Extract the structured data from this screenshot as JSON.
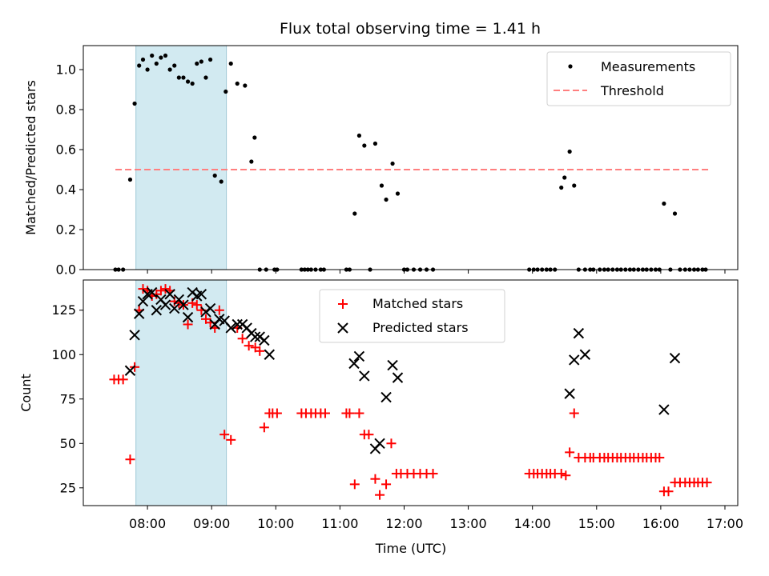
{
  "chart_data": [
    {
      "type": "scatter",
      "title": "Flux total observing time = 1.41 h",
      "xlabel": "",
      "ylabel": "Matched/Predicted stars",
      "xlim": [
        7.0,
        17.2
      ],
      "ylim": [
        0,
        1.12
      ],
      "yticks": [
        0,
        0.2,
        0.4,
        0.6,
        0.8,
        1.0
      ],
      "ytick_labels": [
        "0.0",
        "0.2",
        "0.4",
        "0.6",
        "0.8",
        "1.0"
      ],
      "xticks": [
        8,
        9,
        10,
        11,
        12,
        13,
        14,
        15,
        16,
        17
      ],
      "grid": false,
      "legend_position": "top-right",
      "shaded_interval": {
        "start": 7.82,
        "end": 9.23,
        "color": "#add8e6"
      },
      "series": [
        {
          "name": "Measurements",
          "marker": "dot",
          "color": "#000000",
          "x": [
            7.5,
            7.55,
            7.62,
            7.73,
            7.8,
            7.87,
            7.93,
            8.0,
            8.07,
            8.14,
            8.21,
            8.28,
            8.35,
            8.42,
            8.49,
            8.56,
            8.63,
            8.7,
            8.77,
            8.84,
            8.91,
            8.98,
            9.05,
            9.15,
            9.22,
            9.3,
            9.4,
            9.52,
            9.62,
            9.67,
            9.75,
            9.85,
            9.98,
            10.02,
            10.4,
            10.45,
            10.5,
            10.55,
            10.62,
            10.7,
            10.75,
            11.1,
            11.15,
            11.23,
            11.3,
            11.38,
            11.47,
            11.55,
            11.65,
            11.72,
            11.82,
            11.9,
            12.0,
            12.05,
            12.15,
            12.25,
            12.35,
            12.45,
            13.95,
            14.02,
            14.08,
            14.15,
            14.22,
            14.28,
            14.35,
            14.45,
            14.5,
            14.58,
            14.65,
            14.72,
            14.82,
            14.9,
            14.95,
            15.05,
            15.12,
            15.18,
            15.25,
            15.32,
            15.38,
            15.45,
            15.52,
            15.58,
            15.65,
            15.72,
            15.78,
            15.85,
            15.92,
            15.98,
            16.05,
            16.15,
            16.22,
            16.3,
            16.38,
            16.45,
            16.52,
            16.58,
            16.65,
            16.7
          ],
          "y": [
            0,
            0,
            0,
            0.45,
            0.83,
            1.02,
            1.05,
            1.0,
            1.07,
            1.03,
            1.06,
            1.07,
            1.0,
            1.02,
            0.96,
            0.96,
            0.94,
            0.93,
            1.03,
            1.04,
            0.96,
            1.05,
            0.47,
            0.44,
            0.89,
            1.03,
            0.93,
            0.92,
            0.54,
            0.66,
            0,
            0,
            0,
            0,
            0,
            0,
            0,
            0,
            0,
            0,
            0,
            0,
            0,
            0.28,
            0.67,
            0.62,
            0,
            0.63,
            0.42,
            0.35,
            0.53,
            0.38,
            0,
            0,
            0,
            0,
            0,
            0,
            0,
            0,
            0,
            0,
            0,
            0,
            0,
            0.41,
            0.46,
            0.59,
            0.42,
            0,
            0,
            0,
            0,
            0,
            0,
            0,
            0,
            0,
            0,
            0,
            0,
            0,
            0,
            0,
            0,
            0,
            0,
            0,
            0.33,
            0,
            0.28,
            0,
            0,
            0,
            0,
            0,
            0,
            0
          ],
          "x_plot": [
            7.5,
            7.55,
            7.62,
            7.73,
            7.8,
            7.87,
            7.93,
            8.0,
            8.07,
            8.14,
            8.21,
            8.28,
            8.35,
            8.42,
            8.49,
            8.56,
            8.63,
            8.7,
            8.77,
            8.84,
            8.91,
            8.98,
            9.05,
            9.15,
            9.22,
            9.3,
            9.4,
            9.52,
            9.62,
            9.67,
            9.75,
            9.85,
            9.98,
            10.02,
            10.4,
            10.45,
            10.5,
            10.55,
            10.62,
            10.7,
            10.75,
            11.1,
            11.15,
            11.23,
            11.3,
            11.38,
            11.47,
            11.55,
            11.65,
            11.72,
            11.82,
            11.9,
            12.0,
            12.05,
            12.15,
            12.25,
            12.35,
            12.45,
            13.95,
            14.02,
            14.08,
            14.15,
            14.22,
            14.28,
            14.35,
            14.45,
            14.5,
            14.58,
            14.65,
            14.72,
            14.82,
            14.9,
            14.95,
            15.05,
            15.12,
            15.18,
            15.25,
            15.32,
            15.38,
            15.45,
            15.52,
            15.58,
            15.65,
            15.72,
            15.78,
            15.85,
            15.92,
            15.98,
            16.05,
            16.15,
            16.22,
            16.3,
            16.38,
            16.45,
            16.52,
            16.58,
            16.65,
            16.7
          ]
        },
        {
          "name": "Threshold",
          "marker": "dashed-line",
          "color": "#ff7f7f",
          "x": [
            7.5,
            16.75
          ],
          "y": [
            0.5,
            0.5
          ]
        }
      ]
    },
    {
      "type": "scatter",
      "title": "",
      "xlabel": "Time (UTC)",
      "ylabel": "Count",
      "xlim": [
        7.0,
        17.2
      ],
      "ylim": [
        15,
        142
      ],
      "yticks": [
        25,
        50,
        75,
        100,
        125
      ],
      "ytick_labels": [
        "25",
        "50",
        "75",
        "100",
        "125"
      ],
      "xticks": [
        8,
        9,
        10,
        11,
        12,
        13,
        14,
        15,
        16,
        17
      ],
      "xtick_labels": [
        "08:00",
        "09:00",
        "10:00",
        "11:00",
        "12:00",
        "13:00",
        "14:00",
        "15:00",
        "16:00",
        "17:00"
      ],
      "grid": false,
      "legend_position": "top-center",
      "shaded_interval": {
        "start": 7.82,
        "end": 9.23,
        "color": "#add8e6"
      },
      "series": [
        {
          "name": "Matched stars",
          "marker": "plus",
          "color": "#ff0000",
          "x": [
            7.48,
            7.55,
            7.62,
            7.73,
            7.8,
            7.87,
            7.93,
            8.0,
            8.07,
            8.14,
            8.21,
            8.28,
            8.35,
            8.42,
            8.49,
            8.56,
            8.63,
            8.7,
            8.77,
            8.84,
            8.91,
            8.98,
            9.05,
            9.12,
            9.2,
            9.3,
            9.4,
            9.48,
            9.58,
            9.68,
            9.75,
            9.82,
            9.9,
            9.95,
            10.02,
            10.4,
            10.47,
            10.55,
            10.62,
            10.7,
            10.77,
            11.1,
            11.15,
            11.23,
            11.3,
            11.38,
            11.45,
            11.55,
            11.62,
            11.72,
            11.8,
            11.88,
            11.95,
            12.05,
            12.15,
            12.25,
            12.35,
            12.45,
            13.95,
            14.02,
            14.08,
            14.15,
            14.22,
            14.28,
            14.35,
            14.45,
            14.52,
            14.58,
            14.65,
            14.72,
            14.82,
            14.9,
            14.95,
            15.05,
            15.12,
            15.18,
            15.25,
            15.32,
            15.38,
            15.45,
            15.52,
            15.58,
            15.65,
            15.72,
            15.78,
            15.85,
            15.92,
            15.98,
            16.05,
            16.12,
            16.22,
            16.3,
            16.38,
            16.45,
            16.52,
            16.58,
            16.65,
            16.72
          ],
          "y": [
            86,
            86,
            86,
            41,
            93,
            125,
            137,
            136,
            133,
            134,
            136,
            137,
            136,
            130,
            129,
            128,
            117,
            129,
            128,
            125,
            120,
            118,
            115,
            125,
            55,
            52,
            115,
            109,
            105,
            104,
            102,
            59,
            67,
            67,
            67,
            67,
            67,
            67,
            67,
            67,
            67,
            67,
            67,
            27,
            67,
            55,
            55,
            30,
            21,
            27,
            50,
            33,
            33,
            33,
            33,
            33,
            33,
            33,
            33,
            33,
            33,
            33,
            33,
            33,
            33,
            33,
            32,
            45,
            67,
            42,
            42,
            42,
            42,
            42,
            42,
            42,
            42,
            42,
            42,
            42,
            42,
            42,
            42,
            42,
            42,
            42,
            42,
            42,
            23,
            23,
            28,
            28,
            28,
            28,
            28,
            28,
            28,
            28
          ]
        },
        {
          "name": "Predicted stars",
          "marker": "x",
          "color": "#000000",
          "x": [
            7.73,
            7.8,
            7.87,
            7.93,
            8.0,
            8.07,
            8.14,
            8.21,
            8.28,
            8.35,
            8.42,
            8.49,
            8.56,
            8.63,
            8.7,
            8.77,
            8.84,
            8.91,
            8.98,
            9.05,
            9.12,
            9.2,
            9.3,
            9.4,
            9.48,
            9.55,
            9.62,
            9.68,
            9.75,
            9.82,
            9.9,
            11.22,
            11.3,
            11.38,
            11.55,
            11.62,
            11.72,
            11.82,
            11.9,
            14.58,
            14.65,
            14.72,
            14.82,
            16.05,
            16.22
          ],
          "y": [
            91,
            111,
            123,
            130,
            134,
            135,
            125,
            131,
            128,
            134,
            126,
            131,
            128,
            121,
            135,
            133,
            134,
            124,
            126,
            117,
            120,
            119,
            115,
            117,
            117,
            115,
            112,
            110,
            110,
            108,
            100,
            95,
            99,
            88,
            47,
            50,
            76,
            94,
            87,
            78,
            97,
            112,
            100,
            69,
            98
          ]
        }
      ]
    }
  ]
}
